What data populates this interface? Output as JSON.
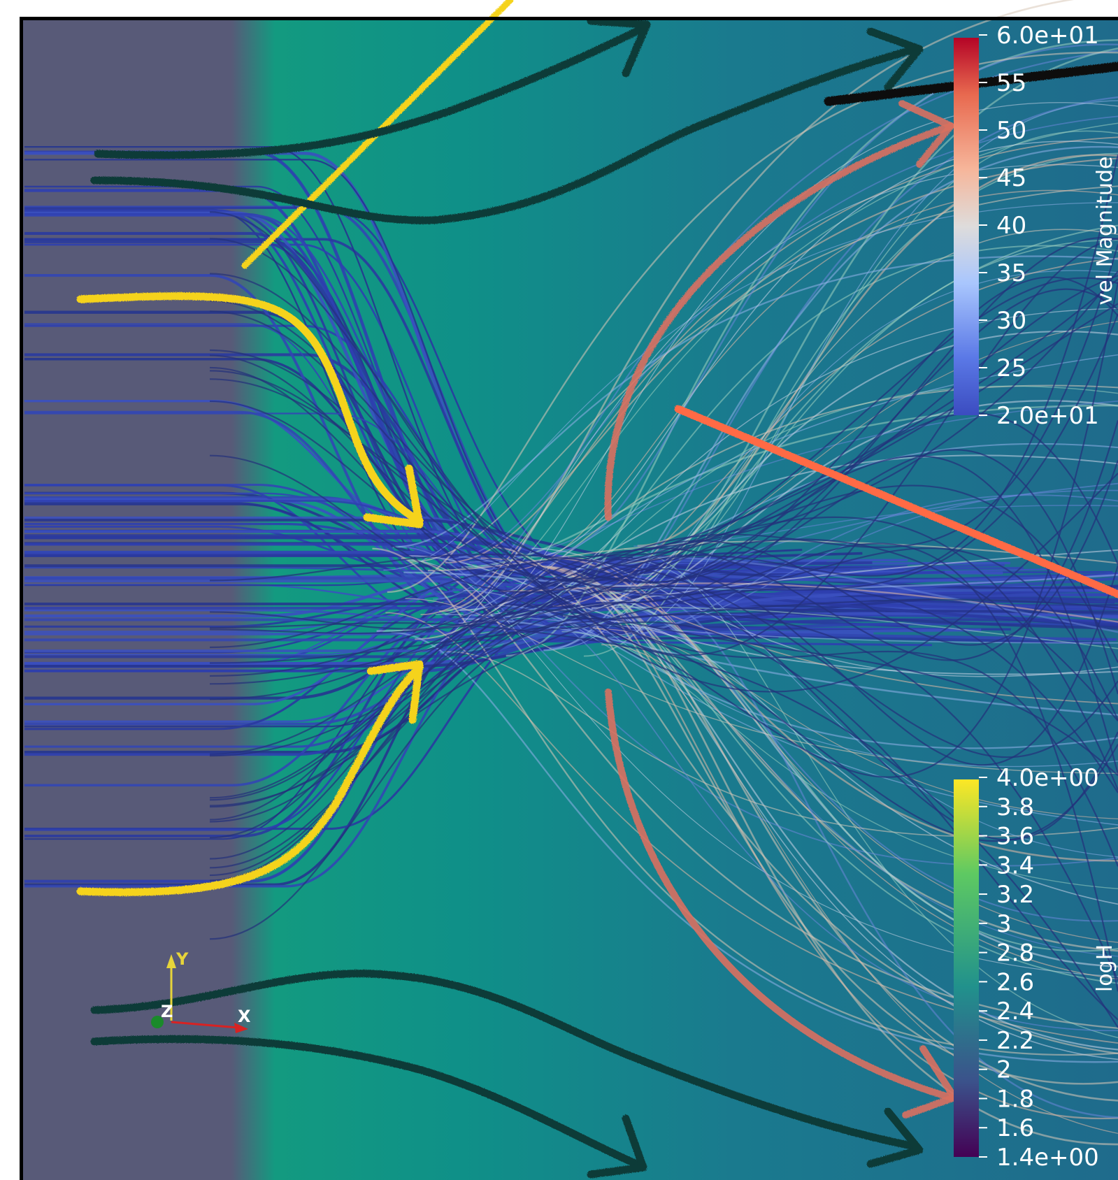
{
  "scene": {
    "colors": {
      "background_gray": "#585a78",
      "background_teal": "#0f8f86",
      "background_blue": "#1e6e8e",
      "streamline_blue": "#3346b4",
      "arrow_yellow": "#f5d31e",
      "arrow_dark": "#0f3a38",
      "arrow_salmon": "#d9705f",
      "arrow_orange": "#ff6a45"
    }
  },
  "colorbars": [
    {
      "id": "vel",
      "title": "vel Magnitude",
      "ticks": [
        "6.0e+01",
        "55",
        "50",
        "45",
        "40",
        "35",
        "30",
        "25",
        "2.0e+01"
      ],
      "range": [
        20,
        60
      ],
      "colormap": "coolwarm",
      "colors": [
        "#3b4cc0",
        "#7396f5",
        "#b0cbfc",
        "#dddddd",
        "#f6b69b",
        "#e8694f",
        "#c7282a",
        "#b40426"
      ]
    },
    {
      "id": "logH",
      "title": "logH",
      "ticks": [
        "4.0e+00",
        "3.8",
        "3.6",
        "3.4",
        "3.2",
        "3",
        "2.8",
        "2.6",
        "2.4",
        "2.2",
        "2",
        "1.8",
        "1.6",
        "1.4e+00"
      ],
      "range": [
        1.4,
        4.0
      ],
      "colormap": "viridis",
      "colors": [
        "#440154",
        "#3b528b",
        "#21918c",
        "#5ec962",
        "#fde725"
      ]
    }
  ],
  "axes_triad": {
    "y_label": "Y",
    "z_label": "Z",
    "x_label": "X",
    "y_color": "#e6d43a",
    "z_color": "#1a8a2a",
    "x_color": "#d82222"
  }
}
